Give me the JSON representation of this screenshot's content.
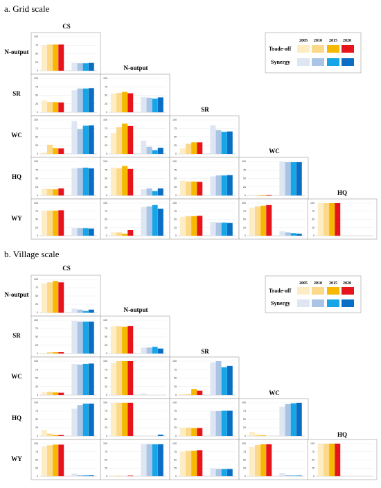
{
  "sections": [
    {
      "title": "a. Grid scale",
      "legend": {
        "years": [
          "2005",
          "2010",
          "2015",
          "2020"
        ],
        "rows": [
          "Trade-off",
          "Synergy"
        ]
      },
      "row_labels": [
        "N-output",
        "SR",
        "WC",
        "HQ",
        "WY"
      ],
      "col_labels": [
        "CS",
        "N-output",
        "SR",
        "WC",
        "HQ"
      ]
    },
    {
      "title": "b. Village scale",
      "legend": {
        "years": [
          "2005",
          "2010",
          "2015",
          "2020"
        ],
        "rows": [
          "Trade-off",
          "Synergy"
        ]
      },
      "row_labels": [
        "N-output",
        "SR",
        "WC",
        "HQ",
        "WY"
      ],
      "col_labels": [
        "CS",
        "N-output",
        "SR",
        "WC",
        "HQ"
      ]
    }
  ],
  "colors": {
    "tradeoff": [
      "#fdecc4",
      "#fcd889",
      "#f6b800",
      "#e8141b"
    ],
    "synergy": [
      "#dde6f2",
      "#a9c4e4",
      "#16a6e8",
      "#0a6fc4"
    ]
  },
  "chart_data": [
    {
      "type": "bar",
      "title": "a. Grid scale",
      "ylim": [
        0,
        100
      ],
      "yticks": [
        0,
        25,
        50,
        75,
        100
      ],
      "categories": [
        "Trade-off 2005",
        "Trade-off 2010",
        "Trade-off 2015",
        "Trade-off 2020",
        "Synergy 2005",
        "Synergy 2010",
        "Synergy 2015",
        "Synergy 2020"
      ],
      "panels": [
        {
          "row": "N-output",
          "col": "CS",
          "values": [
            75,
            77,
            77,
            77,
            23,
            22,
            22,
            23
          ]
        },
        {
          "row": "SR",
          "col": "CS",
          "values": [
            35,
            30,
            30,
            29,
            65,
            70,
            70,
            71
          ]
        },
        {
          "row": "SR",
          "col": "N-output",
          "values": [
            55,
            57,
            60,
            56,
            45,
            43,
            40,
            44
          ]
        },
        {
          "row": "WC",
          "col": "CS",
          "values": [
            4,
            27,
            17,
            16,
            96,
            73,
            83,
            84
          ]
        },
        {
          "row": "WC",
          "col": "N-output",
          "values": [
            61,
            79,
            89,
            82,
            39,
            21,
            11,
            18
          ]
        },
        {
          "row": "WC",
          "col": "SR",
          "values": [
            16,
            30,
            34,
            34,
            84,
            70,
            65,
            66
          ]
        },
        {
          "row": "HQ",
          "col": "CS",
          "values": [
            20,
            19,
            18,
            21,
            80,
            81,
            82,
            80
          ]
        },
        {
          "row": "HQ",
          "col": "N-output",
          "values": [
            82,
            80,
            87,
            78,
            18,
            21,
            13,
            21
          ]
        },
        {
          "row": "HQ",
          "col": "SR",
          "values": [
            44,
            41,
            41,
            40,
            56,
            59,
            59,
            60
          ]
        },
        {
          "row": "HQ",
          "col": "WC",
          "values": [
            0,
            2,
            2,
            2,
            100,
            98,
            98,
            98
          ]
        },
        {
          "row": "WY",
          "col": "CS",
          "values": [
            77,
            77,
            77,
            78,
            23,
            23,
            23,
            22
          ]
        },
        {
          "row": "WY",
          "col": "N-output",
          "values": [
            10,
            10,
            6,
            17,
            88,
            90,
            94,
            83
          ]
        },
        {
          "row": "WY",
          "col": "SR",
          "values": [
            58,
            60,
            60,
            61,
            42,
            40,
            40,
            39
          ]
        },
        {
          "row": "WY",
          "col": "WC",
          "values": [
            86,
            90,
            92,
            94,
            14,
            10,
            8,
            6
          ]
        },
        {
          "row": "WY",
          "col": "HQ",
          "values": [
            100,
            100,
            100,
            100,
            0,
            0,
            0,
            0
          ]
        }
      ]
    },
    {
      "type": "bar",
      "title": "b. Village scale",
      "ylim": [
        0,
        100
      ],
      "yticks": [
        0,
        25,
        50,
        75,
        100
      ],
      "categories": [
        "Trade-off 2005",
        "Trade-off 2010",
        "Trade-off 2015",
        "Trade-off 2020",
        "Synergy 2005",
        "Synergy 2010",
        "Synergy 2015",
        "Synergy 2020"
      ],
      "panels": [
        {
          "row": "N-output",
          "col": "CS",
          "values": [
            88,
            91,
            95,
            91,
            12,
            9,
            5,
            9
          ]
        },
        {
          "row": "SR",
          "col": "CS",
          "values": [
            2,
            4,
            4,
            4,
            98,
            96,
            96,
            96
          ]
        },
        {
          "row": "SR",
          "col": "N-output",
          "values": [
            82,
            82,
            80,
            83,
            18,
            18,
            20,
            15
          ]
        },
        {
          "row": "WC",
          "col": "CS",
          "values": [
            8,
            10,
            8,
            7,
            92,
            90,
            92,
            93
          ]
        },
        {
          "row": "WC",
          "col": "N-output",
          "values": [
            95,
            100,
            100,
            100,
            5,
            0,
            0,
            0
          ]
        },
        {
          "row": "WC",
          "col": "SR",
          "values": [
            4,
            3,
            18,
            13,
            96,
            100,
            82,
            86
          ]
        },
        {
          "row": "HQ",
          "col": "CS",
          "values": [
            18,
            7,
            3,
            3,
            82,
            93,
            97,
            97
          ]
        },
        {
          "row": "HQ",
          "col": "N-output",
          "values": [
            100,
            100,
            100,
            100,
            0,
            0,
            0,
            4
          ]
        },
        {
          "row": "HQ",
          "col": "SR",
          "values": [
            25,
            25,
            24,
            24,
            75,
            75,
            76,
            76
          ]
        },
        {
          "row": "HQ",
          "col": "WC",
          "values": [
            12,
            4,
            2,
            0,
            88,
            96,
            98,
            100
          ]
        },
        {
          "row": "WY",
          "col": "CS",
          "values": [
            92,
            95,
            97,
            97,
            8,
            4,
            3,
            3
          ]
        },
        {
          "row": "WY",
          "col": "N-output",
          "values": [
            2,
            2,
            0,
            2,
            98,
            98,
            98,
            98
          ]
        },
        {
          "row": "WY",
          "col": "SR",
          "values": [
            76,
            78,
            78,
            80,
            24,
            22,
            22,
            22
          ]
        },
        {
          "row": "WY",
          "col": "WC",
          "values": [
            90,
            96,
            98,
            98,
            10,
            4,
            2,
            2
          ]
        },
        {
          "row": "WY",
          "col": "HQ",
          "values": [
            100,
            100,
            100,
            100,
            0,
            0,
            0,
            0
          ]
        }
      ]
    }
  ]
}
